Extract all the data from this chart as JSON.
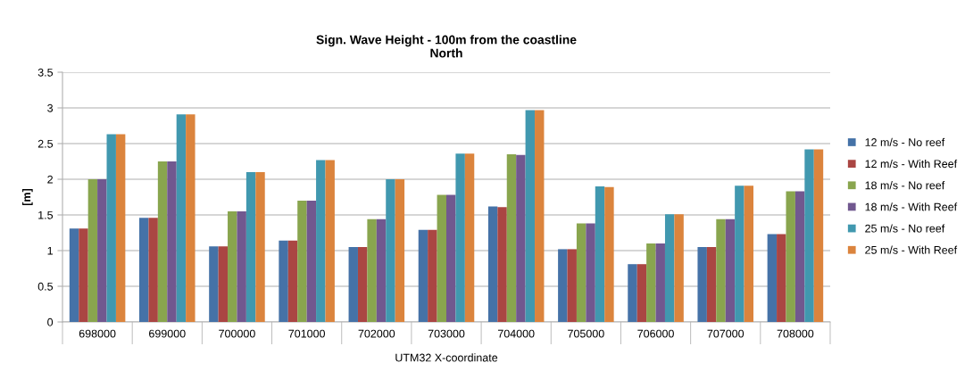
{
  "chart_data": {
    "type": "bar",
    "title": "Sign. Wave Height - 100m from the coastline\nNorth",
    "xlabel": "UTM32 X-coordinate",
    "ylabel": "[m]",
    "categories": [
      "698000",
      "699000",
      "700000",
      "701000",
      "702000",
      "703000",
      "704000",
      "705000",
      "706000",
      "707000",
      "708000"
    ],
    "series": [
      {
        "name": "12 m/s - No reef",
        "color": "#4572a7",
        "values": [
          1.31,
          1.46,
          1.06,
          1.14,
          1.05,
          1.29,
          1.62,
          1.02,
          0.81,
          1.05,
          1.23
        ]
      },
      {
        "name": "12 m/s - With Reef",
        "color": "#aa4643",
        "values": [
          1.31,
          1.46,
          1.06,
          1.14,
          1.05,
          1.29,
          1.61,
          1.02,
          0.81,
          1.05,
          1.23
        ]
      },
      {
        "name": "18 m/s - No reef",
        "color": "#89a54e",
        "values": [
          2.0,
          2.25,
          1.55,
          1.7,
          1.44,
          1.78,
          2.35,
          1.38,
          1.1,
          1.44,
          1.83
        ]
      },
      {
        "name": "18 m/s - With Reef",
        "color": "#71588f",
        "values": [
          2.0,
          2.25,
          1.55,
          1.7,
          1.44,
          1.78,
          2.34,
          1.38,
          1.1,
          1.44,
          1.83
        ]
      },
      {
        "name": "25 m/s - No reef",
        "color": "#4198af",
        "values": [
          2.63,
          2.91,
          2.1,
          2.27,
          2.0,
          2.36,
          2.97,
          1.9,
          1.51,
          1.91,
          2.42
        ]
      },
      {
        "name": "25 m/s - With Reef",
        "color": "#db843d",
        "values": [
          2.63,
          2.91,
          2.1,
          2.27,
          2.0,
          2.36,
          2.97,
          1.89,
          1.51,
          1.91,
          2.42
        ]
      }
    ],
    "ylim": [
      0,
      3.5
    ],
    "yticks": [
      0,
      0.5,
      1,
      1.5,
      2,
      2.5,
      3,
      3.5
    ],
    "grid": "y",
    "legend": "right"
  }
}
